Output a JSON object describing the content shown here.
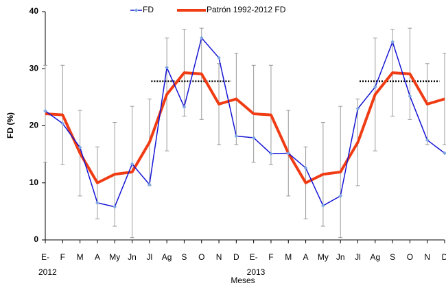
{
  "chart_data": {
    "type": "line",
    "y_axis_label": "FD (%)",
    "x_axis_label": "Meses",
    "categories": [
      "E-",
      "F",
      "M",
      "A",
      "My",
      "Jn",
      "Jl",
      "Ag",
      "S",
      "O",
      "N",
      "D",
      "E-",
      "F",
      "M",
      "A",
      "My",
      "Jn",
      "Jl",
      "Ag",
      "S",
      "O",
      "N",
      "D"
    ],
    "x_groups": [
      "2012",
      "2013"
    ],
    "ylim": [
      0,
      40
    ],
    "yticks": [
      0,
      10,
      20,
      30,
      40
    ],
    "series": [
      {
        "name": "FD",
        "color": "#1515d6",
        "values": [
          22.6,
          20.4,
          16.2,
          6.5,
          5.8,
          13.3,
          9.7,
          30.2,
          23.3,
          35.4,
          31.9,
          18.2,
          17.9,
          15.1,
          15.2,
          12.6,
          6.0,
          7.7,
          23.0,
          26.8,
          34.7,
          25.2,
          17.5,
          15.2
        ]
      },
      {
        "name": "Patrón 1992-2012 FD",
        "color": "#f03c14",
        "values": [
          22.1,
          21.9,
          15.2,
          10.0,
          11.5,
          11.9,
          17.1,
          25.5,
          29.3,
          29.1,
          23.8,
          24.7,
          22.1,
          21.9,
          15.2,
          10.0,
          11.5,
          11.9,
          17.1,
          25.5,
          29.3,
          29.1,
          23.8,
          24.7
        ],
        "errors": [
          8.5,
          8.7,
          7.5,
          6.3,
          9.1,
          11.5,
          7.6,
          9.9,
          7.6,
          8.0,
          7.1,
          8.0,
          8.5,
          8.7,
          7.5,
          6.3,
          9.1,
          11.5,
          7.6,
          9.9,
          7.6,
          8.0,
          7.1,
          8.0
        ]
      }
    ],
    "reference_lines": [
      {
        "from": "Ag",
        "to": "N",
        "value": 27.8
      },
      {
        "from": "Ag",
        "to": "N",
        "value": 27.8
      }
    ]
  }
}
